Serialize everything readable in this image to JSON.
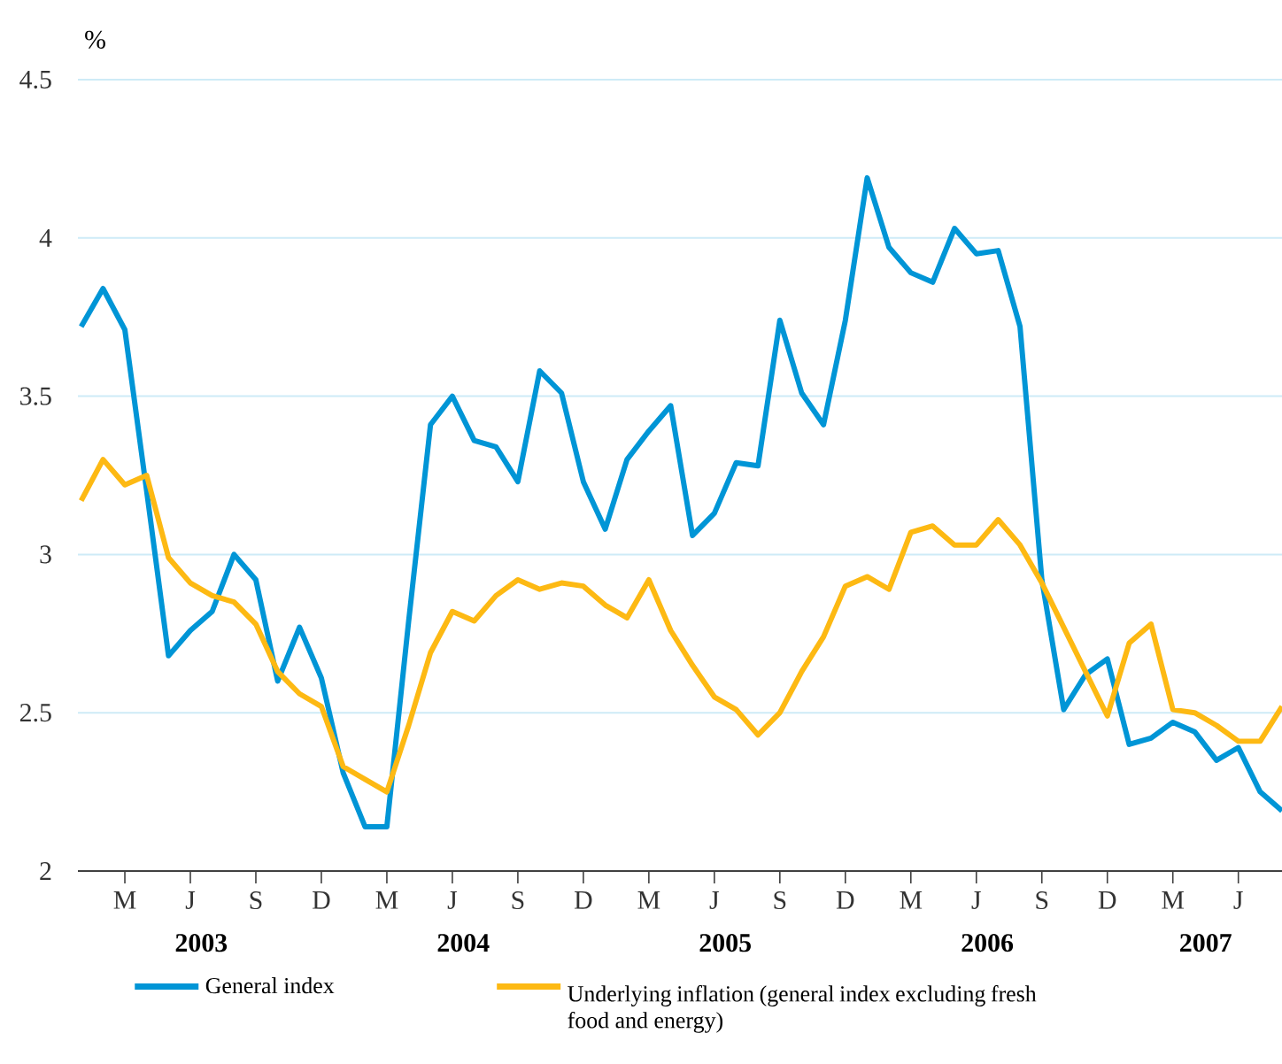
{
  "chart_data": {
    "type": "line",
    "ylabel": "%",
    "categories": [
      null,
      null,
      "M",
      null,
      null,
      "J",
      null,
      null,
      "S",
      null,
      null,
      "D",
      null,
      null,
      "M",
      null,
      null,
      "J",
      null,
      null,
      "S",
      null,
      null,
      "D",
      null,
      null,
      "M",
      null,
      null,
      "J",
      null,
      null,
      "S",
      null,
      null,
      "D",
      null,
      null,
      "M",
      null,
      null,
      "J",
      null,
      null,
      "S",
      null,
      null,
      "D",
      null,
      null,
      "M",
      null,
      null,
      "J",
      null,
      null
    ],
    "series": [
      {
        "name": "General index",
        "color": "#0095d6",
        "values": [
          3.72,
          3.84,
          3.71,
          3.2,
          2.68,
          2.76,
          2.82,
          3.0,
          2.92,
          2.6,
          2.77,
          2.61,
          2.31,
          2.14,
          2.14,
          2.79,
          3.41,
          3.5,
          3.36,
          3.34,
          3.23,
          3.58,
          3.51,
          3.23,
          3.08,
          3.3,
          3.39,
          3.47,
          3.06,
          3.13,
          3.29,
          3.28,
          3.74,
          3.51,
          3.41,
          3.74,
          4.19,
          3.97,
          3.89,
          3.86,
          4.03,
          3.95,
          3.96,
          3.72,
          2.92,
          2.51,
          2.62,
          2.67,
          2.4,
          2.42,
          2.47,
          2.44,
          2.35,
          2.39,
          2.25,
          2.19
        ]
      },
      {
        "name": "Underlying inflation (general index excluding fresh food and energy)",
        "color": "#fdb913",
        "values": [
          3.17,
          3.3,
          3.22,
          3.25,
          2.99,
          2.91,
          2.87,
          2.85,
          2.78,
          2.63,
          2.56,
          2.52,
          2.33,
          2.29,
          2.25,
          2.46,
          2.69,
          2.82,
          2.79,
          2.87,
          2.92,
          2.89,
          2.91,
          2.9,
          2.84,
          2.8,
          2.92,
          2.76,
          2.65,
          2.55,
          2.51,
          2.43,
          2.5,
          2.63,
          2.74,
          2.9,
          2.93,
          2.89,
          3.07,
          3.09,
          3.03,
          3.03,
          3.11,
          3.03,
          2.91,
          2.77,
          2.63,
          2.49,
          2.72,
          2.78,
          2.51,
          2.5,
          2.46,
          2.41,
          2.41,
          2.52
        ]
      }
    ],
    "ylim": [
      2,
      4.5
    ],
    "yticks": [
      2,
      2.5,
      3,
      3.5,
      4,
      4.5
    ],
    "grid": "y",
    "legend": "bottom",
    "annotations": [
      "2003",
      "2004",
      "2005",
      "2006",
      "2007"
    ]
  }
}
